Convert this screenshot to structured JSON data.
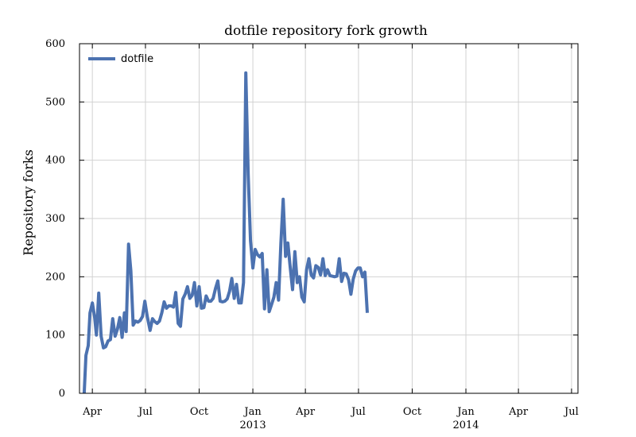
{
  "chart_data": {
    "type": "line",
    "title": "dotfile repository fork growth",
    "xlabel": "",
    "ylabel": "Repository forks",
    "ylim": [
      0,
      600
    ],
    "xlim": [
      "2012-03-10",
      "2014-07-12"
    ],
    "yticks": [
      0,
      100,
      200,
      300,
      400,
      500,
      600
    ],
    "xticks": [
      {
        "date": "2012-04-01",
        "label": "Apr",
        "sub": ""
      },
      {
        "date": "2012-07-01",
        "label": "Jul",
        "sub": ""
      },
      {
        "date": "2012-10-01",
        "label": "Oct",
        "sub": ""
      },
      {
        "date": "2013-01-01",
        "label": "Jan",
        "sub": "2013"
      },
      {
        "date": "2013-04-01",
        "label": "Apr",
        "sub": ""
      },
      {
        "date": "2013-07-01",
        "label": "Jul",
        "sub": ""
      },
      {
        "date": "2013-10-01",
        "label": "Oct",
        "sub": ""
      },
      {
        "date": "2014-01-01",
        "label": "Jan",
        "sub": "2014"
      },
      {
        "date": "2014-04-01",
        "label": "Apr",
        "sub": ""
      },
      {
        "date": "2014-07-01",
        "label": "Jul",
        "sub": ""
      }
    ],
    "grid": true,
    "legend_position": "top-left",
    "series": [
      {
        "name": "dotfile",
        "color": "#4c72b0",
        "points": [
          [
            "2012-03-18",
            0
          ],
          [
            "2012-03-21",
            65
          ],
          [
            "2012-03-25",
            82
          ],
          [
            "2012-03-28",
            138
          ],
          [
            "2012-04-01",
            155
          ],
          [
            "2012-04-05",
            130
          ],
          [
            "2012-04-08",
            100
          ],
          [
            "2012-04-12",
            172
          ],
          [
            "2012-04-16",
            98
          ],
          [
            "2012-04-20",
            78
          ],
          [
            "2012-04-24",
            80
          ],
          [
            "2012-04-28",
            90
          ],
          [
            "2012-05-02",
            92
          ],
          [
            "2012-05-06",
            128
          ],
          [
            "2012-05-10",
            98
          ],
          [
            "2012-05-14",
            110
          ],
          [
            "2012-05-18",
            130
          ],
          [
            "2012-05-22",
            96
          ],
          [
            "2012-05-26",
            138
          ],
          [
            "2012-05-29",
            106
          ],
          [
            "2012-06-02",
            256
          ],
          [
            "2012-06-06",
            210
          ],
          [
            "2012-06-10",
            117
          ],
          [
            "2012-06-14",
            124
          ],
          [
            "2012-06-18",
            122
          ],
          [
            "2012-06-22",
            125
          ],
          [
            "2012-06-26",
            132
          ],
          [
            "2012-06-30",
            158
          ],
          [
            "2012-07-04",
            132
          ],
          [
            "2012-07-09",
            108
          ],
          [
            "2012-07-13",
            128
          ],
          [
            "2012-07-17",
            123
          ],
          [
            "2012-07-21",
            120
          ],
          [
            "2012-07-25",
            124
          ],
          [
            "2012-07-29",
            138
          ],
          [
            "2012-08-02",
            157
          ],
          [
            "2012-08-06",
            146
          ],
          [
            "2012-08-10",
            150
          ],
          [
            "2012-08-14",
            150
          ],
          [
            "2012-08-18",
            148
          ],
          [
            "2012-08-22",
            173
          ],
          [
            "2012-08-26",
            120
          ],
          [
            "2012-08-30",
            115
          ],
          [
            "2012-09-03",
            162
          ],
          [
            "2012-09-07",
            170
          ],
          [
            "2012-09-11",
            183
          ],
          [
            "2012-09-15",
            163
          ],
          [
            "2012-09-19",
            168
          ],
          [
            "2012-09-23",
            190
          ],
          [
            "2012-09-27",
            150
          ],
          [
            "2012-10-01",
            183
          ],
          [
            "2012-10-05",
            146
          ],
          [
            "2012-10-09",
            147
          ],
          [
            "2012-10-13",
            167
          ],
          [
            "2012-10-17",
            158
          ],
          [
            "2012-10-21",
            158
          ],
          [
            "2012-10-25",
            163
          ],
          [
            "2012-10-29",
            180
          ],
          [
            "2012-11-02",
            193
          ],
          [
            "2012-11-06",
            158
          ],
          [
            "2012-11-10",
            157
          ],
          [
            "2012-11-14",
            158
          ],
          [
            "2012-11-18",
            162
          ],
          [
            "2012-11-22",
            175
          ],
          [
            "2012-11-26",
            197
          ],
          [
            "2012-11-30",
            163
          ],
          [
            "2012-12-04",
            187
          ],
          [
            "2012-12-08",
            155
          ],
          [
            "2012-12-12",
            155
          ],
          [
            "2012-12-16",
            190
          ],
          [
            "2012-12-20",
            550
          ],
          [
            "2012-12-24",
            375
          ],
          [
            "2012-12-28",
            262
          ],
          [
            "2013-01-01",
            215
          ],
          [
            "2013-01-05",
            247
          ],
          [
            "2013-01-09",
            238
          ],
          [
            "2013-01-13",
            234
          ],
          [
            "2013-01-17",
            240
          ],
          [
            "2013-01-21",
            145
          ],
          [
            "2013-01-25",
            212
          ],
          [
            "2013-01-29",
            140
          ],
          [
            "2013-02-02",
            152
          ],
          [
            "2013-02-06",
            165
          ],
          [
            "2013-02-10",
            190
          ],
          [
            "2013-02-14",
            160
          ],
          [
            "2013-02-18",
            257
          ],
          [
            "2013-02-22",
            333
          ],
          [
            "2013-02-26",
            235
          ],
          [
            "2013-03-02",
            258
          ],
          [
            "2013-03-06",
            217
          ],
          [
            "2013-03-10",
            178
          ],
          [
            "2013-03-14",
            243
          ],
          [
            "2013-03-18",
            190
          ],
          [
            "2013-03-22",
            200
          ],
          [
            "2013-03-26",
            165
          ],
          [
            "2013-03-30",
            157
          ],
          [
            "2013-04-03",
            212
          ],
          [
            "2013-04-07",
            231
          ],
          [
            "2013-04-11",
            203
          ],
          [
            "2013-04-15",
            198
          ],
          [
            "2013-04-19",
            219
          ],
          [
            "2013-04-23",
            216
          ],
          [
            "2013-04-27",
            203
          ],
          [
            "2013-05-01",
            231
          ],
          [
            "2013-05-05",
            202
          ],
          [
            "2013-05-09",
            212
          ],
          [
            "2013-05-13",
            202
          ],
          [
            "2013-05-17",
            201
          ],
          [
            "2013-05-21",
            200
          ],
          [
            "2013-05-25",
            201
          ],
          [
            "2013-05-29",
            231
          ],
          [
            "2013-06-02",
            192
          ],
          [
            "2013-06-06",
            206
          ],
          [
            "2013-06-10",
            205
          ],
          [
            "2013-06-14",
            195
          ],
          [
            "2013-06-18",
            170
          ],
          [
            "2013-06-22",
            196
          ],
          [
            "2013-06-26",
            210
          ],
          [
            "2013-06-30",
            215
          ],
          [
            "2013-07-04",
            215
          ],
          [
            "2013-07-08",
            200
          ],
          [
            "2013-07-12",
            208
          ],
          [
            "2013-07-16",
            138
          ]
        ]
      }
    ]
  }
}
